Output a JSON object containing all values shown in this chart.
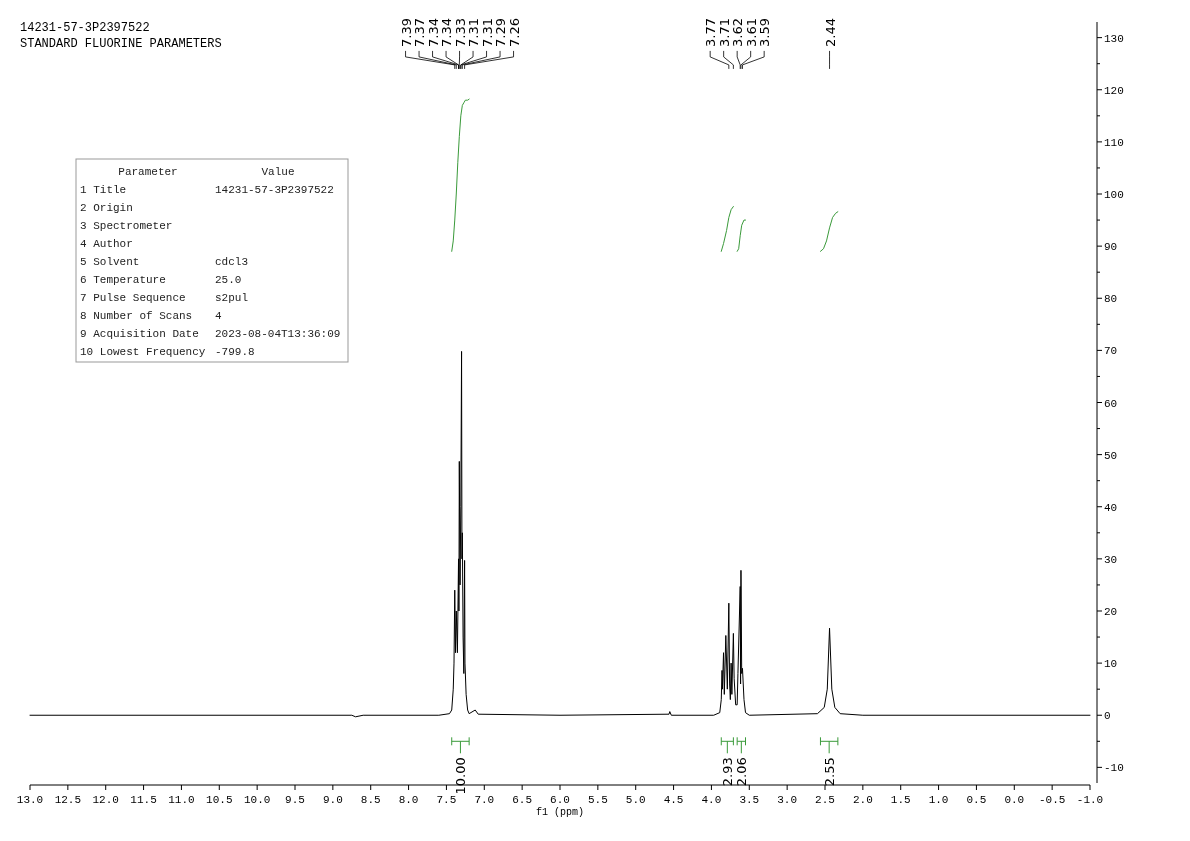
{
  "chart_data": [
    {
      "type": "line",
      "title": "14231-57-3P2397522",
      "subtitle": "STANDARD FLUORINE PARAMETERS",
      "xlabel": "f1 (ppm)",
      "xlim": [
        13.0,
        -1.0
      ],
      "xticks": [
        {
          "value": 13,
          "label": "13.0"
        },
        12.5,
        {
          "value": 12,
          "label": "12.0"
        },
        11.5,
        {
          "value": 11,
          "label": "11.0"
        },
        10.5,
        {
          "value": 10,
          "label": "10.0"
        },
        9.5,
        {
          "value": 9,
          "label": "9.0"
        },
        8.5,
        {
          "value": 8,
          "label": "8.0"
        },
        7.5,
        {
          "value": 7,
          "label": "7.0"
        },
        6.5,
        {
          "value": 6,
          "label": "6.0"
        },
        5.5,
        {
          "value": 5,
          "label": "5.0"
        },
        4.5,
        {
          "value": 4,
          "label": "4.0"
        },
        3.5,
        {
          "value": 3,
          "label": "3.0"
        },
        2.5,
        {
          "value": 2,
          "label": "2.0"
        },
        1.5,
        {
          "value": 1,
          "label": "1.0"
        },
        0.5,
        {
          "value": 0,
          "label": "0.0"
        },
        -0.5,
        {
          "value": -1,
          "label": "-1.0"
        }
      ],
      "ylim": [
        -13,
        133
      ],
      "yticks": [
        -10,
        {
          "value": -5,
          "label": null
        },
        0,
        {
          "value": 5,
          "label": null
        },
        10,
        {
          "value": 15,
          "label": null
        },
        20,
        {
          "value": 25,
          "label": null
        },
        30,
        {
          "value": 35,
          "label": null
        },
        40,
        {
          "value": 45,
          "label": null
        },
        50,
        {
          "value": 55,
          "label": null
        },
        60,
        {
          "value": 65,
          "label": null
        },
        70,
        {
          "value": 75,
          "label": null
        },
        80,
        {
          "value": 85,
          "label": null
        },
        90,
        {
          "value": 95,
          "label": null
        },
        100,
        {
          "value": 105,
          "label": null
        },
        110,
        {
          "value": 115,
          "label": null
        },
        120,
        {
          "value": 125,
          "label": null
        },
        130
      ],
      "grid": false,
      "marker": "none",
      "line_style": "solid",
      "series": [
        {
          "color": "#000000",
          "x": [
            13.0,
            8.75,
            8.7,
            8.6,
            7.6,
            7.46,
            7.43,
            7.41,
            7.4,
            7.39,
            7.38,
            7.37,
            7.355,
            7.34,
            7.335,
            7.33,
            7.32,
            7.31,
            7.3,
            7.295,
            7.29,
            7.28,
            7.27,
            7.26,
            7.255,
            7.24,
            7.22,
            7.2,
            7.12,
            7.08,
            6.0,
            4.56,
            4.55,
            4.53,
            3.97,
            3.89,
            3.87,
            3.86,
            3.855,
            3.84,
            3.83,
            3.81,
            3.79,
            3.77,
            3.76,
            3.75,
            3.74,
            3.73,
            3.71,
            3.7,
            3.68,
            3.66,
            3.65,
            3.62,
            3.615,
            3.61,
            3.6,
            3.59,
            3.57,
            3.55,
            3.5,
            2.6,
            2.51,
            2.47,
            2.44,
            2.41,
            2.37,
            2.3,
            2.0,
            -1.0
          ],
          "values": [
            0,
            0,
            -0.3,
            0,
            0,
            0.3,
            1,
            5,
            10,
            24,
            12,
            20,
            12,
            30,
            20,
            48.7,
            25,
            40,
            69.8,
            30,
            35,
            15,
            8,
            29.7,
            10,
            4,
            1,
            0.3,
            1,
            0.2,
            0,
            0.2,
            0.7,
            0,
            0,
            0.5,
            3,
            8.6,
            5,
            12,
            4,
            15.3,
            5,
            21.5,
            6,
            3,
            10,
            4,
            15.7,
            7,
            2,
            2,
            8,
            24.7,
            6,
            27.8,
            8,
            9,
            3,
            0.5,
            0,
            0.3,
            1.5,
            5,
            16.7,
            5,
            1.5,
            0.3,
            0,
            0
          ]
        },
        {
          "color": "#3a9a3a",
          "x": [
            7.43,
            7.41,
            7.39,
            7.37,
            7.35,
            7.33,
            7.31,
            7.29,
            7.27,
            7.25,
            7.22,
            7.2
          ],
          "values": [
            89,
            91,
            95,
            100,
            106,
            111,
            115,
            117,
            117.5,
            118,
            118,
            118.2
          ]
        },
        {
          "color": "#3a9a3a",
          "x": [
            3.87,
            3.84,
            3.8,
            3.77,
            3.74,
            3.71
          ],
          "values": [
            89,
            90.5,
            93,
            95.5,
            97,
            97.6
          ]
        },
        {
          "color": "#3a9a3a",
          "x": [
            3.66,
            3.64,
            3.62,
            3.6,
            3.57,
            3.55
          ],
          "values": [
            89,
            89.5,
            92,
            94,
            95,
            95
          ]
        },
        {
          "color": "#3a9a3a",
          "x": [
            2.56,
            2.52,
            2.48,
            2.44,
            2.4,
            2.36,
            2.33
          ],
          "values": [
            89,
            89.5,
            91,
            93.5,
            95.5,
            96.3,
            96.6
          ]
        }
      ],
      "annotations": [
        "7.39",
        "7.37",
        "7.34",
        "7.34",
        "7.33",
        "7.31",
        "7.31",
        "7.29",
        "7.26",
        "3.77",
        "3.71",
        "3.62",
        "3.61",
        "3.59",
        "2.44",
        "10.00",
        "2.93",
        "2.06",
        "2.55"
      ],
      "tick_labels": "xy"
    },
    {
      "type": "other",
      "annotations": [
        "Parameter\tValue",
        "1 Title\t14231-57-3P2397522",
        "2 Origin",
        "3 Spectrometer",
        "4 Author",
        "5 Solvent\tcdcl3",
        "6 Temperature\t25.0",
        "7 Pulse Sequence\ts2pul",
        "8 Number of Scans\t4",
        "9 Acquisition Date\t2023-08-04T13:36:09",
        "10 Lowest Frequency\t-799.8"
      ]
    }
  ]
}
